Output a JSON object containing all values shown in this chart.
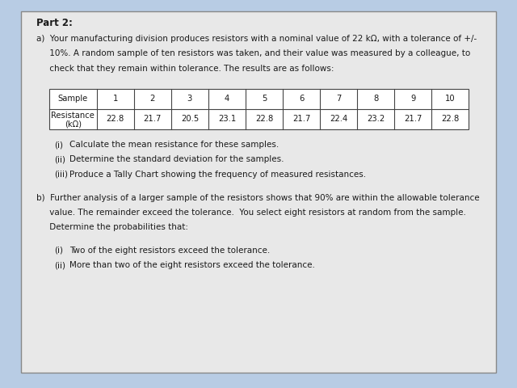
{
  "background_color": "#b8cce4",
  "paper_color": "#e8e8e8",
  "border_color": "#888888",
  "title": "Part 2:",
  "part_a_line1": "a)  Your manufacturing division produces resistors with a nominal value of 22 kΩ, with a tolerance of +/-",
  "part_a_line2": "     10%. A random sample of ten resistors was taken, and their value was measured by a colleague, to",
  "part_a_line3": "     check that they remain within tolerance. The results are as follows:",
  "table_headers": [
    "Sample",
    "1",
    "2",
    "3",
    "4",
    "5",
    "6",
    "7",
    "8",
    "9",
    "10"
  ],
  "table_row_label1": "Resistance",
  "table_row_label2": "(kΩ)",
  "table_values": [
    "22.8",
    "21.7",
    "20.5",
    "23.1",
    "22.8",
    "21.7",
    "22.4",
    "23.2",
    "21.7",
    "22.8"
  ],
  "item_a1_num": "(i)",
  "item_a1_text": "Calculate the mean resistance for these samples.",
  "item_a2_num": "(ii)",
  "item_a2_text": "Determine the standard deviation for the samples.",
  "item_a3_num": "(iii)",
  "item_a3_text": "Produce a Tally Chart showing the frequency of measured resistances.",
  "part_b_line1": "b)  Further analysis of a larger sample of the resistors shows that 90% are within the allowable tolerance",
  "part_b_line2": "     value. The remainder exceed the tolerance.  You select eight resistors at random from the sample.",
  "part_b_line3": "     Determine the probabilities that:",
  "item_b1_num": "(i)",
  "item_b1_text": "Two of the eight resistors exceed the tolerance.",
  "item_b2_num": "(ii)",
  "item_b2_text": "More than two of the eight resistors exceed the tolerance.",
  "table_line_color": "#444444",
  "text_color": "#1a1a1a",
  "font_size_title": 8.5,
  "font_size_body": 7.5,
  "font_size_table": 7.2
}
